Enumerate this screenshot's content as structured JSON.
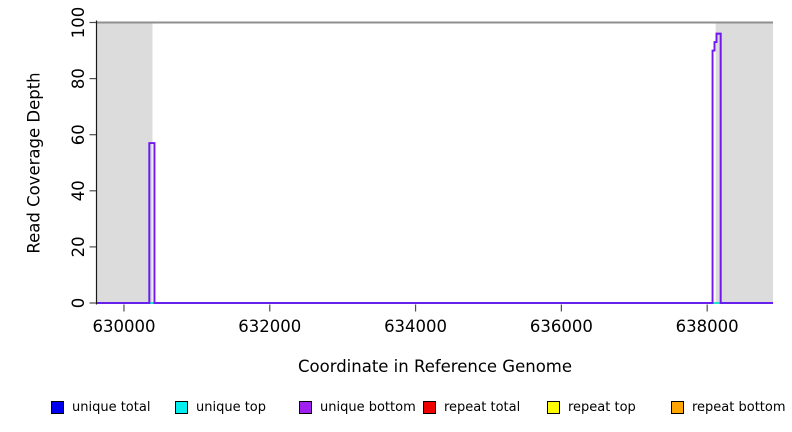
{
  "chart_data": {
    "type": "line",
    "title": "",
    "xlabel": "Coordinate in Reference Genome",
    "ylabel": "Read Coverage Depth",
    "xlim": [
      629630,
      638903
    ],
    "ylim": [
      0,
      100
    ],
    "x_ticks": [
      630000,
      632000,
      634000,
      636000,
      638000
    ],
    "y_ticks": [
      0,
      20,
      40,
      60,
      80,
      100
    ],
    "grid": false,
    "legend_position": "bottom",
    "shaded_regions": [
      {
        "name": "left-shaded-region",
        "x0": 629630,
        "x1": 630391,
        "color": "#dcdcdc"
      },
      {
        "name": "right-shaded-region",
        "x0": 638117,
        "x1": 638903,
        "color": "#dcdcdc"
      }
    ],
    "boundary_line": {
      "y": 100,
      "color": "#8f8f8f"
    },
    "series": [
      {
        "name": "repeat total",
        "color": "#ee0000",
        "opacity": 1,
        "points": [
          [
            629630,
            0
          ],
          [
            638903,
            0
          ]
        ]
      },
      {
        "name": "repeat top",
        "color": "#ffff00",
        "opacity": 1,
        "points": [
          [
            629630,
            0
          ],
          [
            638903,
            0
          ]
        ]
      },
      {
        "name": "repeat bottom",
        "color": "#ffa500",
        "opacity": 1,
        "points": [
          [
            629630,
            0
          ],
          [
            638903,
            0
          ]
        ]
      },
      {
        "name": "unique top",
        "color": "#00eeee",
        "opacity": 1,
        "points": [
          [
            629630,
            0
          ],
          [
            638903,
            0
          ]
        ]
      },
      {
        "name": "unique total",
        "color": "#0000ee",
        "opacity": 1,
        "points": [
          [
            629630,
            0
          ],
          [
            630348,
            0
          ],
          [
            630348,
            57
          ],
          [
            630417,
            57
          ],
          [
            630417,
            0
          ],
          [
            638074,
            0
          ],
          [
            638074,
            90
          ],
          [
            638100,
            90
          ],
          [
            638100,
            93
          ],
          [
            638128,
            93
          ],
          [
            638128,
            96
          ],
          [
            638186,
            96
          ],
          [
            638186,
            0
          ],
          [
            638903,
            0
          ]
        ]
      },
      {
        "name": "unique bottom",
        "color": "#a020f0",
        "opacity": 0.72,
        "points": [
          [
            629630,
            0
          ],
          [
            630348,
            0
          ],
          [
            630348,
            57
          ],
          [
            630417,
            57
          ],
          [
            630417,
            0
          ],
          [
            638074,
            0
          ],
          [
            638074,
            90
          ],
          [
            638100,
            90
          ],
          [
            638100,
            93
          ],
          [
            638128,
            93
          ],
          [
            638128,
            96
          ],
          [
            638186,
            96
          ],
          [
            638186,
            0
          ],
          [
            638903,
            0
          ]
        ]
      }
    ],
    "legend": [
      {
        "label": "unique total",
        "color": "#0000ee"
      },
      {
        "label": "unique top",
        "color": "#00eeee"
      },
      {
        "label": "unique bottom",
        "color": "#a020f0"
      },
      {
        "label": "repeat total",
        "color": "#ee0000"
      },
      {
        "label": "repeat top",
        "color": "#ffff00"
      },
      {
        "label": "repeat bottom",
        "color": "#ffa500"
      }
    ]
  }
}
